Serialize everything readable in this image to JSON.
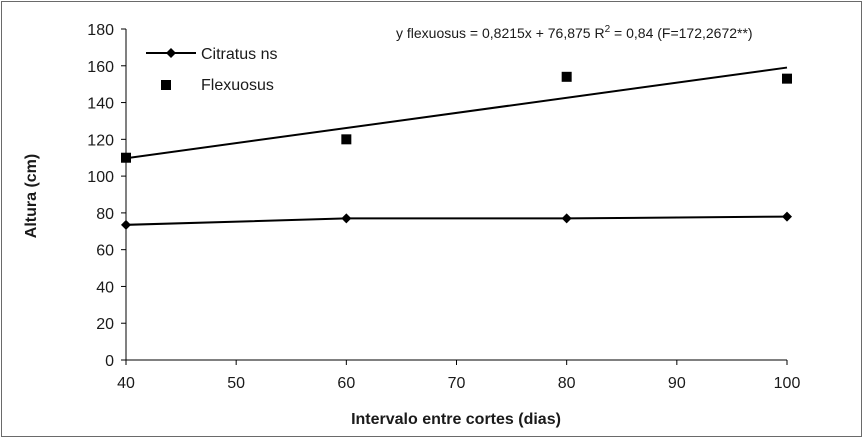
{
  "chart_data": {
    "type": "scatter",
    "xlabel": "Intervalo entre cortes (dias)",
    "ylabel": "Altura (cm)",
    "xlim": [
      40,
      100
    ],
    "ylim": [
      0,
      180
    ],
    "x_ticks": [
      "40",
      "50",
      "60",
      "70",
      "80",
      "90",
      "100"
    ],
    "y_ticks": [
      "0",
      "20",
      "40",
      "60",
      "80",
      "100",
      "120",
      "140",
      "160",
      "180"
    ],
    "grid": false,
    "legend_position": "top-left",
    "series": [
      {
        "name": "Citratus ns",
        "marker": "diamond",
        "style": "line",
        "color": "#000000",
        "x": [
          40,
          60,
          80,
          100
        ],
        "y": [
          73.5,
          77,
          77,
          78
        ]
      },
      {
        "name": "Flexuosus",
        "marker": "square",
        "style": "points",
        "color": "#000000",
        "x": [
          40,
          60,
          80,
          100
        ],
        "y": [
          110,
          120,
          154,
          153
        ]
      }
    ],
    "trendline": {
      "series": "Flexuosus",
      "slope": 0.8215,
      "intercept": 76.875,
      "x_range": [
        40,
        100
      ]
    },
    "annotation": {
      "equation_prefix": "y flexuosus = 0,8215x + 76,875 R",
      "superscript": "2",
      "equation_suffix": " = 0,84 (F=172,2672**)"
    }
  }
}
